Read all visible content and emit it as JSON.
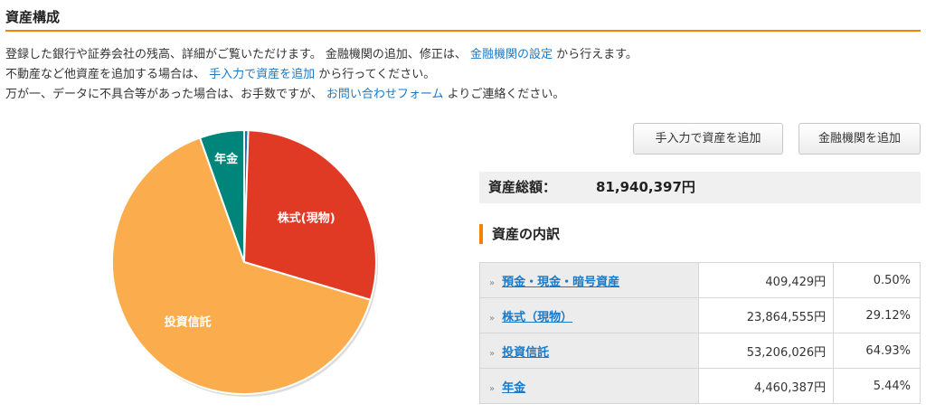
{
  "page": {
    "title": "資産構成"
  },
  "intro": {
    "line1_a": "登録した銀行や証券会社の残高、詳細がご覧いただけます。 金融機関の追加、修正は、 ",
    "line1_link": "金融機関の設定",
    "line1_b": " から行えます。",
    "line2_a": "不動産など他資産を追加する場合は、 ",
    "line2_link": "手入力で資産を追加",
    "line2_b": " から行ってください。",
    "line3_a": "万が一、データに不具合等があった場合は、お手数ですが、 ",
    "line3_link": "お問い合わせフォーム",
    "line3_b": " よりご連絡ください。"
  },
  "buttons": {
    "add_manual": "手入力で資産を追加",
    "add_institution": "金融機関を追加"
  },
  "summary": {
    "total_label": "資産総額：",
    "total_value": "81,940,397円"
  },
  "breakdown": {
    "heading": "資産の内訳",
    "rows": [
      {
        "label": "預金・現金・暗号資産",
        "amount": "409,429円",
        "percent": "0.50%"
      },
      {
        "label": "株式（現物）",
        "amount": "23,864,555円",
        "percent": "29.12%"
      },
      {
        "label": "投資信託",
        "amount": "53,206,026円",
        "percent": "64.93%"
      },
      {
        "label": "年金",
        "amount": "4,460,387円",
        "percent": "5.44%"
      }
    ]
  },
  "chart_data": {
    "type": "pie",
    "categories": [
      "預金・現金・暗号資産",
      "株式(現物)",
      "投資信託",
      "年金"
    ],
    "values": [
      0.5,
      29.12,
      64.93,
      5.44
    ],
    "slice_labels": [
      "",
      "株式(現物)",
      "投資信託",
      "年金"
    ],
    "colors": [
      "#1f6fb8",
      "#e03a25",
      "#fbac4c",
      "#00857a"
    ],
    "start_angle": "top",
    "direction": "clockwise"
  }
}
